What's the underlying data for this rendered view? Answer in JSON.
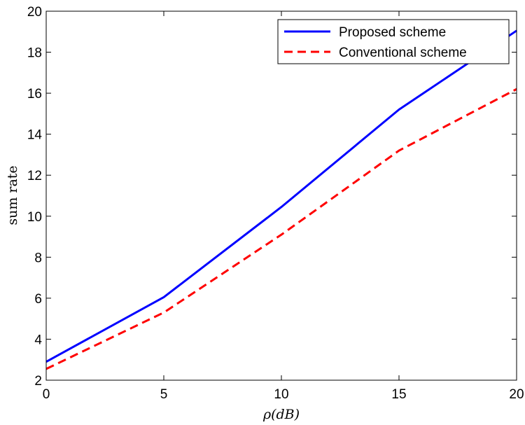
{
  "chart_data": {
    "type": "line",
    "title": "",
    "xlabel": "ρ(dB)",
    "ylabel": "sum rate",
    "xlim": [
      0,
      20
    ],
    "ylim": [
      2,
      20
    ],
    "xticks": [
      0,
      5,
      10,
      15,
      20
    ],
    "yticks": [
      2,
      4,
      6,
      8,
      10,
      12,
      14,
      16,
      18,
      20
    ],
    "grid": false,
    "legend_position": "top-right",
    "series": [
      {
        "name": "Proposed scheme",
        "color": "#0000ff",
        "line_style": "solid",
        "x": [
          0,
          5,
          10,
          15,
          20
        ],
        "y": [
          2.9,
          6.05,
          10.45,
          15.2,
          19.05
        ]
      },
      {
        "name": "Conventional scheme",
        "color": "#ff0000",
        "line_style": "dashed",
        "x": [
          0,
          5,
          10,
          15,
          20
        ],
        "y": [
          2.55,
          5.3,
          9.1,
          13.2,
          16.2
        ]
      }
    ]
  }
}
